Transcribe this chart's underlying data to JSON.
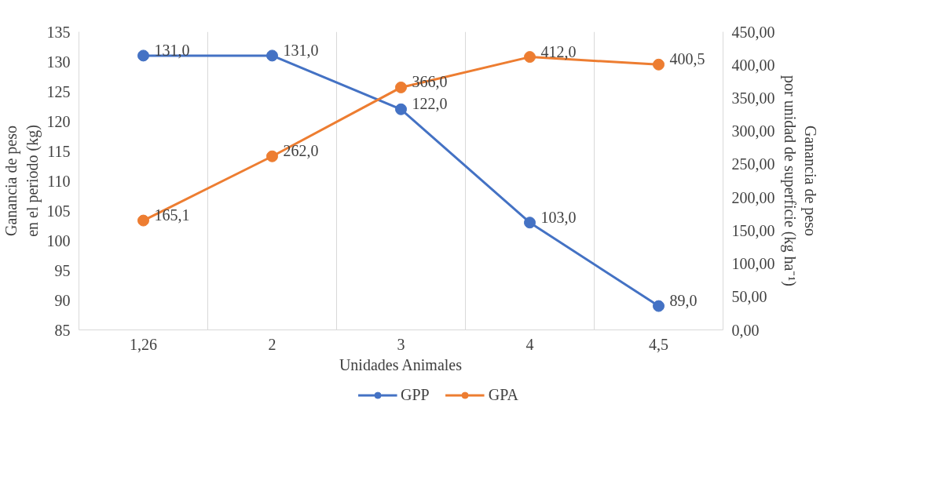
{
  "chart_data": {
    "type": "line",
    "xlabel": "Unidades Animales",
    "ylabel": "Ganancia de peso\nen el periodo (kg)",
    "y2label": "Ganancia de peso\npor unidad de superficie (kg ha⁻¹)",
    "categories": [
      "1,26",
      "2",
      "3",
      "4",
      "4,5"
    ],
    "series": [
      {
        "name": "GPP",
        "color": "#4472c4",
        "values": [
          131,
          131,
          122,
          103,
          89
        ],
        "value_labels": [
          "131,0",
          "131,0",
          "122,0",
          "103,0",
          "89,0"
        ]
      },
      {
        "name": "GPA",
        "color": "#ed7d31",
        "axis": "y2",
        "values": [
          165.1,
          262,
          366,
          412,
          400.5
        ],
        "value_labels": [
          "165,1",
          "262,0",
          "366,0",
          "412,0",
          "400,5"
        ]
      }
    ],
    "ylim": [
      85,
      135
    ],
    "yticks": [
      85,
      90,
      95,
      100,
      105,
      110,
      115,
      120,
      125,
      130,
      135
    ],
    "y2lim": [
      0,
      450
    ],
    "y2ticks": [
      {
        "value": 0,
        "label": "0,00"
      },
      {
        "value": 50,
        "label": "50,00"
      },
      {
        "value": 100,
        "label": "100,00"
      },
      {
        "value": 150,
        "label": "150,00"
      },
      {
        "value": 200,
        "label": "200,00"
      },
      {
        "value": 250,
        "label": "250,00"
      },
      {
        "value": 300,
        "label": "300,00"
      },
      {
        "value": 350,
        "label": "350,00"
      },
      {
        "value": 400,
        "label": "400,00"
      },
      {
        "value": 450,
        "label": "450,00"
      }
    ],
    "grid": "x",
    "legend": "bottom",
    "marker": "circle",
    "line_style": "solid"
  }
}
